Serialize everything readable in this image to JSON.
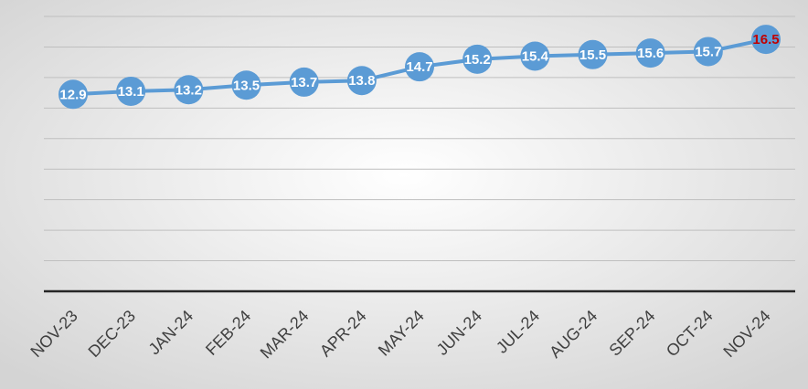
{
  "chart_data": {
    "type": "line",
    "categories": [
      "NOV-23",
      "DEC-23",
      "JAN-24",
      "FEB-24",
      "MAR-24",
      "APR-24",
      "MAY-24",
      "JUN-24",
      "JUL-24",
      "AUG-24",
      "SEP-24",
      "OCT-24",
      "NOV-24"
    ],
    "series": [
      {
        "color": "#5b9bd5",
        "values": [
          12.9,
          13.1,
          13.2,
          13.5,
          13.7,
          13.8,
          14.7,
          15.2,
          15.4,
          15.5,
          15.6,
          15.7,
          16.5
        ],
        "value_label_colors": [
          "#ffffff",
          "#ffffff",
          "#ffffff",
          "#ffffff",
          "#ffffff",
          "#ffffff",
          "#ffffff",
          "#ffffff",
          "#ffffff",
          "#ffffff",
          "#ffffff",
          "#ffffff",
          "#c00000"
        ]
      }
    ],
    "ylim": [
      0,
      18
    ],
    "yticks": [
      0,
      2,
      4,
      6,
      8,
      10,
      12,
      14,
      16,
      18
    ],
    "grid": true
  }
}
